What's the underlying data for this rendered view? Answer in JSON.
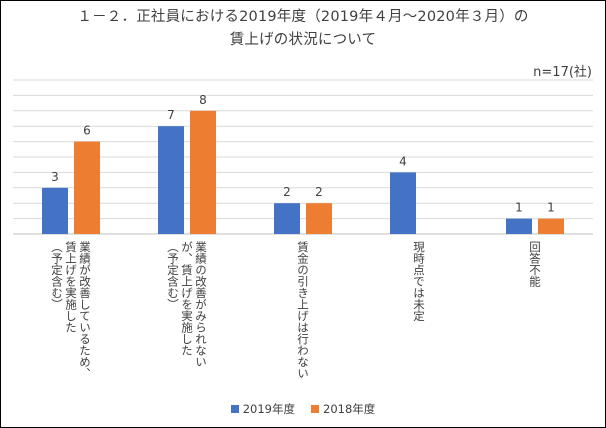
{
  "chart_data": {
    "type": "bar",
    "title": [
      "１－２．正社員における2019年度（2019年４月～2020年３月）の",
      "賃上げの状況について"
    ],
    "note": "n=17(社)",
    "categories": [
      [
        "業績が改善しているため、",
        "賃上げを実施した",
        "（予定含む）"
      ],
      [
        "業績の改善がみられない",
        "が、賃上げを実施した",
        "（予定含む）"
      ],
      [
        "賃金の引き上げは行わない"
      ],
      [
        "現時点では未定"
      ],
      [
        "回答不能"
      ]
    ],
    "series": [
      {
        "name": "2019年度",
        "values": [
          3,
          7,
          2,
          4,
          1
        ],
        "color": "#4472C4"
      },
      {
        "name": "2018年度",
        "values": [
          6,
          8,
          2,
          null,
          1
        ],
        "color": "#ED7D31"
      }
    ],
    "ylim": [
      0,
      10
    ],
    "grid": true,
    "legend_position": "bottom"
  }
}
